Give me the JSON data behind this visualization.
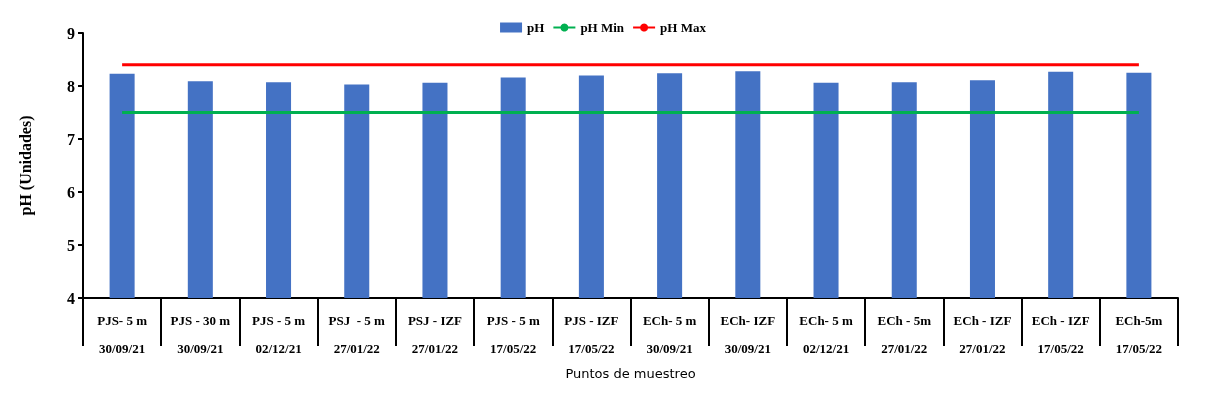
{
  "chart_data": {
    "type": "bar",
    "xlabel": "Puntos de muestreo",
    "ylabel": "pH (Unidades)",
    "categories": [
      "PJS- 5 m\n30/09/21",
      "PJS - 30 m\n30/09/21",
      "PJS - 5 m\n02/12/21",
      "PSJ  - 5 m\n27/01/22",
      "PSJ - IZF\n27/01/22",
      "PJS - 5 m\n17/05/22",
      "PJS - IZF\n17/05/22",
      "ECh- 5 m\n30/09/21",
      "ECh- IZF\n30/09/21",
      "ECh- 5 m\n02/12/21",
      "ECh - 5m\n27/01/22",
      "ECh - IZF\n27/01/22",
      "ECh - IZF\n17/05/22",
      "ECh-5m\n17/05/22"
    ],
    "series": [
      {
        "name": "pH",
        "color": "#4472c4",
        "values": [
          8.23,
          8.09,
          8.07,
          8.03,
          8.06,
          8.16,
          8.2,
          8.24,
          8.28,
          8.06,
          8.07,
          8.11,
          8.27,
          8.25
        ]
      },
      {
        "name": "pH Min",
        "type": "line",
        "color": "#00b050",
        "values": [
          7.5,
          7.5,
          7.5,
          7.5,
          7.5,
          7.5,
          7.5,
          7.5,
          7.5,
          7.5,
          7.5,
          7.5,
          7.5,
          7.5
        ]
      },
      {
        "name": "pH Max",
        "type": "line",
        "color": "#ff0000",
        "values": [
          8.4,
          8.4,
          8.4,
          8.4,
          8.4,
          8.4,
          8.4,
          8.4,
          8.4,
          8.4,
          8.4,
          8.4,
          8.4,
          8.4
        ]
      }
    ],
    "ylim": [
      4,
      9
    ],
    "yticks": [
      4,
      5,
      6,
      7,
      8,
      9
    ],
    "grid": false,
    "legend": "top",
    "marker": "none",
    "line_style": "solid"
  }
}
